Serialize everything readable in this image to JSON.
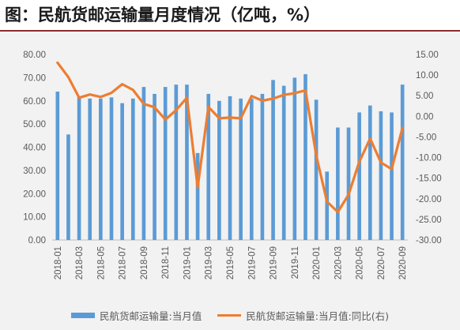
{
  "title": "图：民航货邮运输量月度情况（亿吨，%）",
  "chart_data": {
    "type": "bar",
    "categories": [
      "2018-01",
      "2018-02",
      "2018-03",
      "2018-04",
      "2018-05",
      "2018-06",
      "2018-07",
      "2018-08",
      "2018-09",
      "2018-10",
      "2018-11",
      "2018-12",
      "2019-01",
      "2019-02",
      "2019-03",
      "2019-04",
      "2019-05",
      "2019-06",
      "2019-07",
      "2019-08",
      "2019-09",
      "2019-10",
      "2019-11",
      "2019-12",
      "2020-01",
      "2020-02",
      "2020-03",
      "2020-04",
      "2020-05",
      "2020-06",
      "2020-07",
      "2020-08",
      "2020-09"
    ],
    "x_tick_labels": [
      "2018-01",
      "2018-03",
      "2018-05",
      "2018-07",
      "2018-09",
      "2018-11",
      "2019-01",
      "2019-03",
      "2019-05",
      "2019-07",
      "2019-09",
      "2019-11",
      "2020-01",
      "2020-03",
      "2020-05",
      "2020-07",
      "2020-09"
    ],
    "series": [
      {
        "name": "民航货邮运输量:当月值",
        "type": "bar",
        "axis": "left",
        "color": "#5b9bd5",
        "values": [
          64,
          45.5,
          61.5,
          61,
          61,
          61.5,
          59,
          61,
          66,
          63,
          66,
          67,
          67,
          37.5,
          63,
          60,
          62,
          61,
          61,
          63,
          69,
          66.5,
          70,
          71.5,
          60.5,
          29.5,
          48.5,
          48.5,
          55,
          58,
          55.5,
          55,
          67
        ]
      },
      {
        "name": "民航货邮运输量:当月值:同比(右)",
        "type": "line",
        "axis": "right",
        "color": "#ed7d31",
        "values": [
          13,
          9.5,
          4.5,
          5.3,
          4.7,
          5.7,
          7.8,
          6.4,
          3,
          2.2,
          -0.8,
          1.5,
          4.5,
          -17.2,
          2.3,
          -0.5,
          -0.3,
          -0.5,
          4.9,
          3.8,
          4.3,
          5.2,
          5.6,
          6.3,
          -9.5,
          -20.7,
          -23.2,
          -19,
          -11,
          -5.4,
          -11.2,
          -12.8,
          -2.8
        ]
      }
    ],
    "y_left": {
      "min": 0,
      "max": 80,
      "step": 10,
      "tick_labels": [
        "0.00",
        "10.00",
        "20.00",
        "30.00",
        "40.00",
        "50.00",
        "60.00",
        "70.00",
        "80.00"
      ]
    },
    "y_right": {
      "min": -30,
      "max": 15,
      "step": 5,
      "tick_labels": [
        "-30.00",
        "-25.00",
        "-20.00",
        "-15.00",
        "-10.00",
        "-5.00",
        "0.00",
        "5.00",
        "10.00",
        "15.00"
      ]
    },
    "grid": false,
    "legend_position": "bottom"
  }
}
